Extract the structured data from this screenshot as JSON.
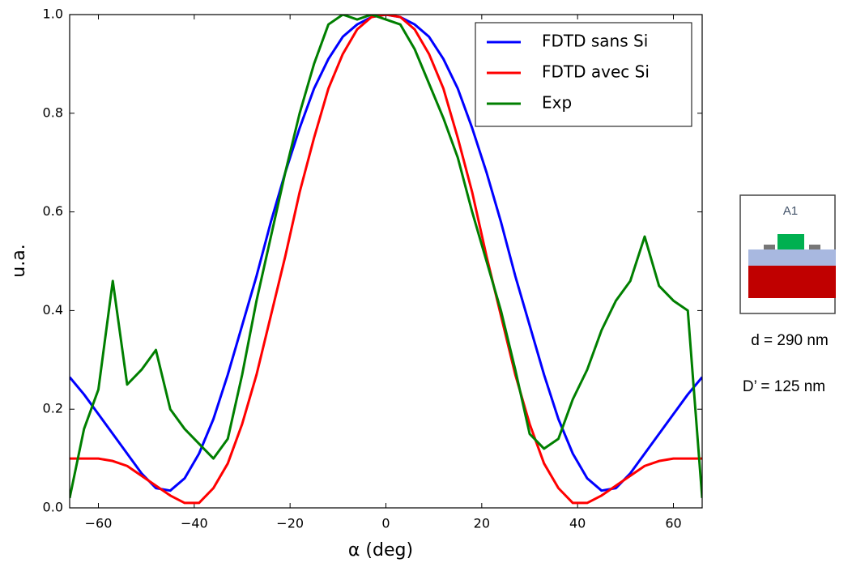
{
  "chart_data": {
    "type": "line",
    "xlabel": "α (deg)",
    "ylabel": "u.a.",
    "xlim": [
      -66,
      66
    ],
    "ylim": [
      0,
      1
    ],
    "xticks": [
      {
        "value": -60,
        "label": "−60"
      },
      {
        "value": -40,
        "label": "−40"
      },
      {
        "value": -20,
        "label": "−20"
      },
      0,
      20,
      40,
      60
    ],
    "yticks": [
      {
        "value": 0,
        "label": "0.0"
      },
      0.2,
      0.4,
      0.6,
      0.8,
      {
        "value": 1,
        "label": "1.0"
      }
    ],
    "legend": "upper right",
    "x": [
      -66,
      -63,
      -60,
      -57,
      -54,
      -51,
      -48,
      -45,
      -42,
      -39,
      -36,
      -33,
      -30,
      -27,
      -24,
      -21,
      -18,
      -15,
      -12,
      -9,
      -6,
      -3,
      0,
      3,
      6,
      9,
      12,
      15,
      18,
      21,
      24,
      27,
      30,
      33,
      36,
      39,
      42,
      45,
      48,
      51,
      54,
      57,
      60,
      63,
      66
    ],
    "series": [
      {
        "name": "FDTD sans Si",
        "color": "#0000ff",
        "values": [
          0.265,
          0.23,
          0.19,
          0.15,
          0.11,
          0.07,
          0.04,
          0.035,
          0.06,
          0.11,
          0.18,
          0.27,
          0.37,
          0.47,
          0.58,
          0.68,
          0.77,
          0.85,
          0.91,
          0.955,
          0.98,
          0.995,
          1.0,
          0.995,
          0.98,
          0.955,
          0.91,
          0.85,
          0.77,
          0.68,
          0.58,
          0.47,
          0.37,
          0.27,
          0.18,
          0.11,
          0.06,
          0.035,
          0.04,
          0.07,
          0.11,
          0.15,
          0.19,
          0.23,
          0.265
        ]
      },
      {
        "name": "FDTD avec Si",
        "color": "#ff0000",
        "values": [
          0.1,
          0.1,
          0.1,
          0.095,
          0.085,
          0.065,
          0.045,
          0.025,
          0.01,
          0.01,
          0.04,
          0.09,
          0.17,
          0.27,
          0.39,
          0.51,
          0.64,
          0.75,
          0.85,
          0.92,
          0.97,
          0.995,
          1.0,
          0.995,
          0.97,
          0.92,
          0.85,
          0.75,
          0.64,
          0.51,
          0.39,
          0.27,
          0.17,
          0.09,
          0.04,
          0.01,
          0.01,
          0.025,
          0.045,
          0.065,
          0.085,
          0.095,
          0.1,
          0.1,
          0.1
        ]
      },
      {
        "name": "Exp",
        "color": "#007f00",
        "values": [
          0.02,
          0.16,
          0.24,
          0.46,
          0.25,
          0.28,
          0.32,
          0.2,
          0.16,
          0.13,
          0.1,
          0.14,
          0.27,
          0.42,
          0.55,
          0.68,
          0.8,
          0.9,
          0.98,
          1.0,
          0.99,
          1.0,
          0.99,
          0.98,
          0.93,
          0.86,
          0.79,
          0.71,
          0.6,
          0.5,
          0.4,
          0.28,
          0.15,
          0.12,
          0.14,
          0.22,
          0.28,
          0.36,
          0.42,
          0.46,
          0.55,
          0.45,
          0.42,
          0.4,
          0.02
        ]
      }
    ],
    "annotations": [
      "A1",
      "d = 290 nm",
      "D’ = 125 nm"
    ]
  }
}
